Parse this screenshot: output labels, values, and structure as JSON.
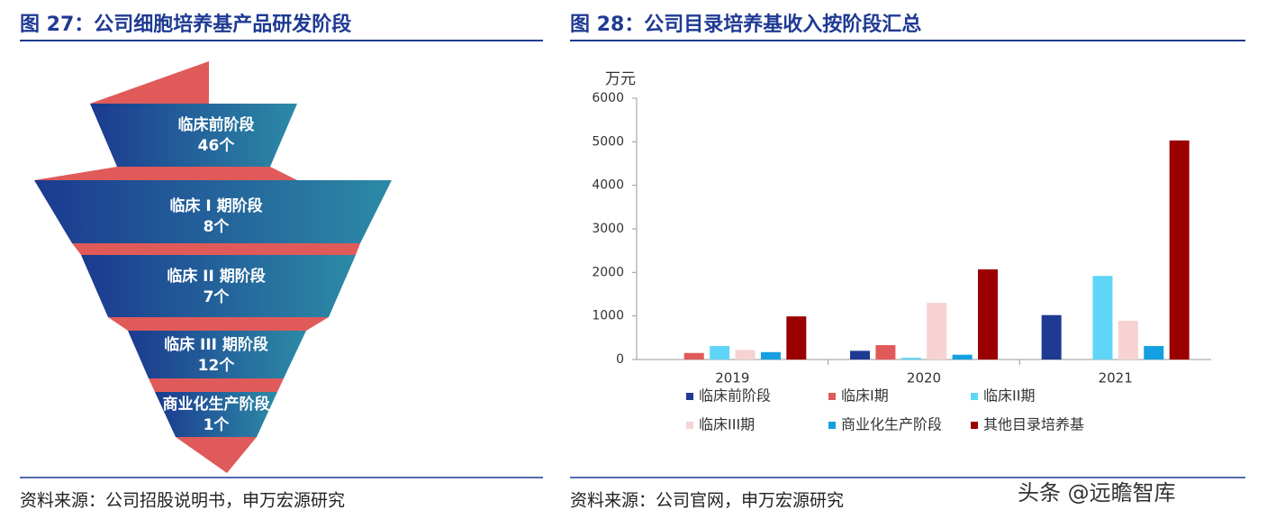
{
  "left_figure": {
    "title": "图 27：公司细胞培养基产品研发阶段",
    "stages": [
      {
        "label": "临床前阶段",
        "count": "46个"
      },
      {
        "label": "临床 I 期阶段",
        "count": "8个"
      },
      {
        "label": "临床 II 期阶段",
        "count": "7个"
      },
      {
        "label": "临床 III 期阶段",
        "count": "12个"
      },
      {
        "label": "商业化生产阶段",
        "count": "1个"
      }
    ],
    "source": "资料来源：公司招股说明书，申万宏源研究"
  },
  "right_figure": {
    "title": "图 28：公司目录培养基收入按阶段汇总",
    "source": "资料来源：公司官网，申万宏源研究"
  },
  "watermark": "头条 @远瞻智库",
  "chart_data": {
    "type": "bar",
    "y_axis_label": "万元",
    "categories": [
      "2019",
      "2020",
      "2021"
    ],
    "series": [
      {
        "name": "临床前阶段",
        "color": "#1f3a93",
        "values": [
          0,
          200,
          1020
        ]
      },
      {
        "name": "临床I期",
        "color": "#e05a5a",
        "values": [
          150,
          330,
          0
        ]
      },
      {
        "name": "临床II期",
        "color": "#5fd6f7",
        "values": [
          310,
          40,
          1920
        ]
      },
      {
        "name": "临床III期",
        "color": "#f7d2d2",
        "values": [
          220,
          1300,
          890
        ]
      },
      {
        "name": "商业化生产阶段",
        "color": "#14a0e0",
        "values": [
          170,
          110,
          310
        ]
      },
      {
        "name": "其他目录培养基",
        "color": "#9b0000",
        "values": [
          990,
          2070,
          5030
        ]
      }
    ],
    "ylim": [
      0,
      6000
    ],
    "yticks": [
      0,
      1000,
      2000,
      3000,
      4000,
      5000,
      6000
    ]
  }
}
